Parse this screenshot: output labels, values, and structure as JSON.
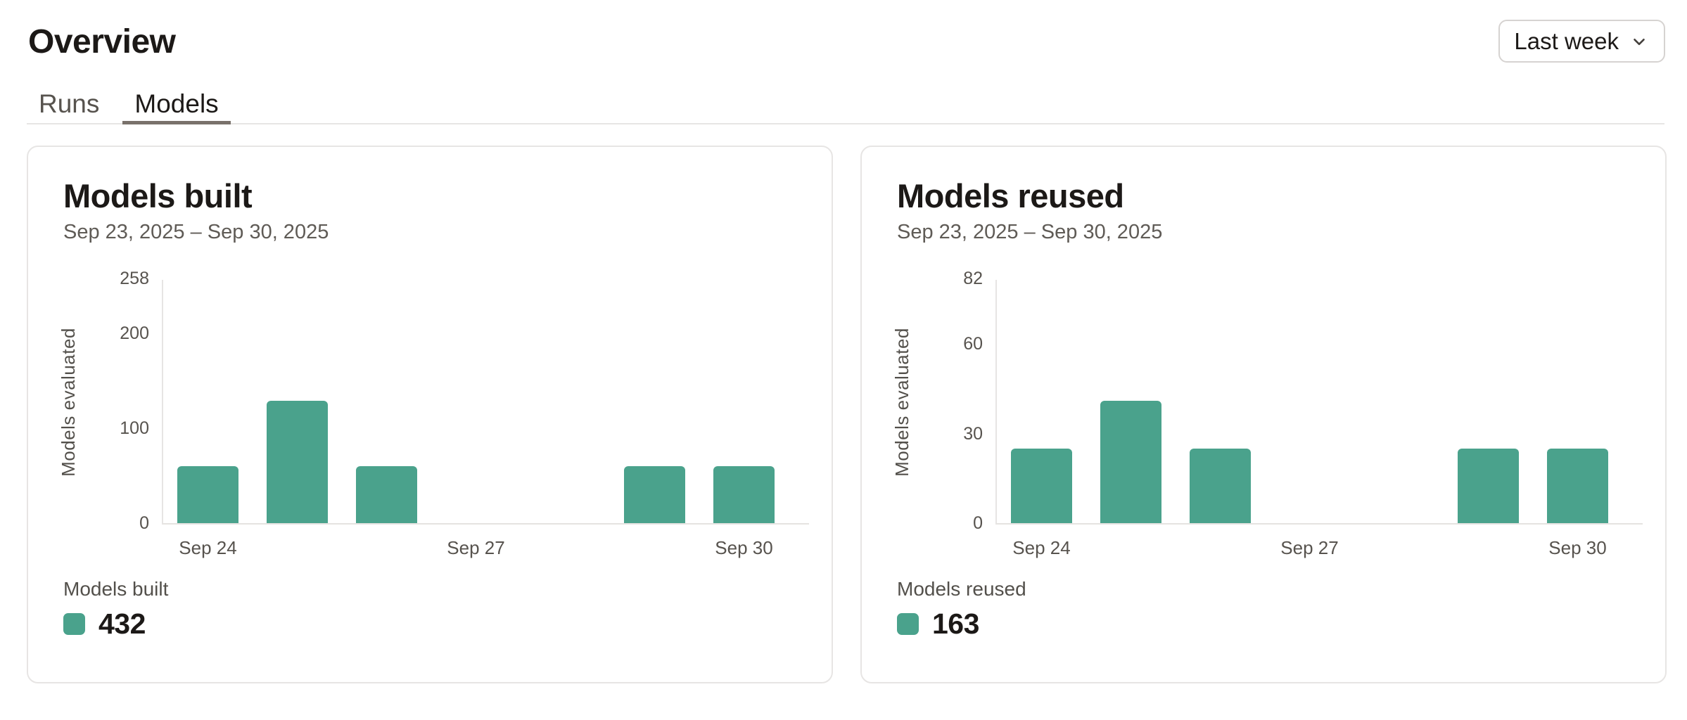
{
  "page": {
    "title": "Overview"
  },
  "tabs": [
    {
      "label": "Runs",
      "active": false
    },
    {
      "label": "Models",
      "active": true
    }
  ],
  "range_selector": {
    "label": "Last week",
    "icon": "chevron-down-icon"
  },
  "theme": {
    "accent_green": "#4aa28c",
    "border_gray": "#e7e5e4",
    "text_dark": "#1c1917",
    "text_gray": "#57534e"
  },
  "chart_data": [
    {
      "type": "bar",
      "title": "Models built",
      "subtitle": "Sep 23, 2025 – Sep 30, 2025",
      "ylabel": "Models evaluated",
      "xlabel": "",
      "categories": [
        "Sep 24",
        "Sep 25",
        "Sep 26",
        "Sep 27",
        "Sep 28",
        "Sep 29",
        "Sep 30"
      ],
      "values": [
        60,
        129,
        60,
        0,
        0,
        60,
        60
      ],
      "ylim": [
        0,
        258
      ],
      "y_ticks": [
        0,
        100,
        200,
        258
      ],
      "x_ticks": [
        {
          "i": 0,
          "label": "Sep 24"
        },
        {
          "i": 3,
          "label": "Sep 27"
        },
        {
          "i": 6,
          "label": "Sep 30"
        }
      ],
      "grid": false,
      "legend": "Models built",
      "legend_position": "bottom-left",
      "total": 432,
      "color": "#4aa28c"
    },
    {
      "type": "bar",
      "title": "Models reused",
      "subtitle": "Sep 23, 2025 – Sep 30, 2025",
      "ylabel": "Models evaluated",
      "xlabel": "",
      "categories": [
        "Sep 24",
        "Sep 25",
        "Sep 26",
        "Sep 27",
        "Sep 28",
        "Sep 29",
        "Sep 30"
      ],
      "values": [
        25,
        41,
        25,
        0,
        0,
        25,
        25
      ],
      "ylim": [
        0,
        82
      ],
      "y_ticks": [
        0,
        30,
        60,
        82
      ],
      "x_ticks": [
        {
          "i": 0,
          "label": "Sep 24"
        },
        {
          "i": 3,
          "label": "Sep 27"
        },
        {
          "i": 6,
          "label": "Sep 30"
        }
      ],
      "grid": false,
      "legend": "Models reused",
      "legend_position": "bottom-left",
      "total": 163,
      "color": "#4aa28c"
    }
  ]
}
